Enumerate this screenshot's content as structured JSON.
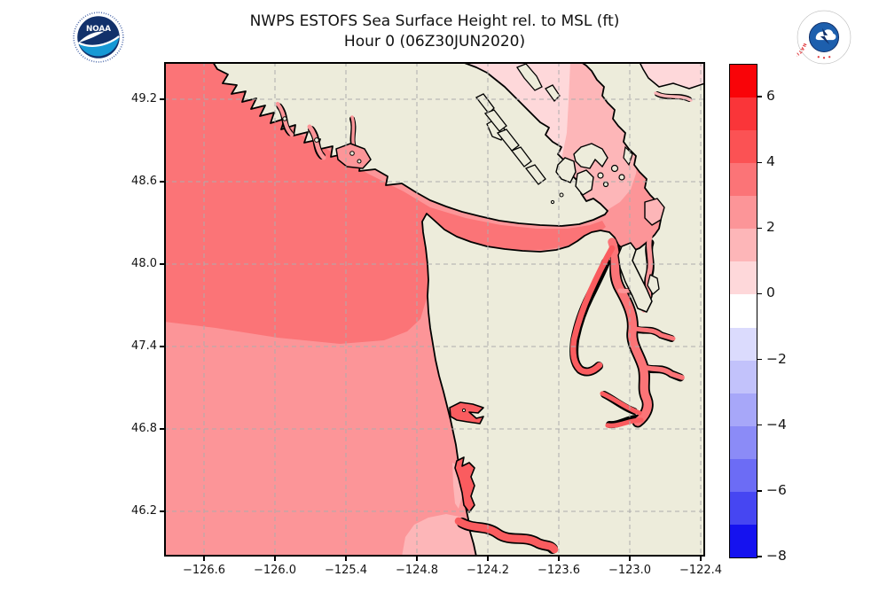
{
  "title": {
    "line1": "NWPS ESTOFS Sea Surface Height rel. to MSL (ft)",
    "line2": "Hour 0 (06Z30JUN2020)"
  },
  "logos": {
    "noaa_label": "NOAA",
    "nws_ring_text": "NATIONAL WEATHER SERVICE"
  },
  "axes": {
    "x_tick_labels": [
      "−126.6",
      "−126.0",
      "−125.4",
      "−124.8",
      "−124.2",
      "−123.6",
      "−123.0",
      "−122.4"
    ],
    "y_tick_labels": [
      "49.2",
      "48.6",
      "48.0",
      "47.4",
      "46.8",
      "46.2"
    ]
  },
  "colorbar": {
    "tick_values": [
      6,
      4,
      2,
      0,
      -2,
      -4,
      -6,
      -8
    ],
    "tick_labels": [
      "6",
      "4",
      "2",
      "0",
      "−2",
      "−4",
      "−6",
      "−8"
    ],
    "min": -8,
    "max": 7,
    "levels_top_to_bottom": [
      "#F90408",
      "#FA3539",
      "#FB5254",
      "#FB7477",
      "#FC9598",
      "#FDB6B8",
      "#FED8DA",
      "#FFFFFF",
      "#DBDBFD",
      "#C2C2FB",
      "#A7A7F9",
      "#8B8BF7",
      "#6C6CF5",
      "#4646F2",
      "#1512EF"
    ]
  },
  "palette": {
    "land": "#EDECDB",
    "coast": "#000000",
    "grid": "#ADADAD",
    "L7": "#F90408",
    "L6": "#FA3539",
    "L5": "#FA5C5F",
    "L4": "#FB7477",
    "L3": "#FC9598",
    "L2": "#FDB6B8",
    "L1": "#FED8DA",
    "L0": "#FFFFFF",
    "noaa_navy": "#12316B",
    "noaa_blue": "#1799D5",
    "nws_blue": "#1D5FAD",
    "nws_red": "#E03A3E"
  },
  "chart_data": {
    "type": "filled_contour_map",
    "title": "NWPS ESTOFS Sea Surface Height rel. to MSL (ft)",
    "subtitle": "Hour 0 (06Z30JUN2020)",
    "variable": "Sea surface height relative to MSL",
    "units": "ft",
    "x_tick_values_lon": [
      -126.6,
      -126.0,
      -125.4,
      -124.8,
      -124.2,
      -123.6,
      -123.0,
      -122.4
    ],
    "y_tick_values_lat": [
      49.2,
      48.6,
      48.0,
      47.4,
      46.8,
      46.2
    ],
    "lon_range": [
      -126.95,
      -122.36
    ],
    "lat_range": [
      45.95,
      49.47
    ],
    "colorbar_range_ft": [
      -8,
      7
    ],
    "contour_interval_ft": 1,
    "colorbar_tick_values": [
      6,
      4,
      2,
      0,
      -2,
      -4,
      -6,
      -8
    ],
    "grid": true,
    "legend_position": "right-colorbar",
    "region_values_ft": [
      {
        "region": "Offshore Pacific north of ~47.5N",
        "value": "3 to 4"
      },
      {
        "region": "Offshore Pacific south of ~47.5N",
        "value": "2 to 3"
      },
      {
        "region": "Strait of Juan de Fuca (west/central)",
        "value": "3 to 4"
      },
      {
        "region": "Eastern Juan de Fuca / San Juan basin",
        "value": "2 to 3"
      },
      {
        "region": "Strait of Georgia",
        "value": "0 to 1"
      },
      {
        "region": "Bellingham / Padilla Bay area",
        "value": "1 to 2"
      },
      {
        "region": "Puget Sound main basin",
        "value": "3 to 4"
      },
      {
        "region": "South Puget Sound inlets and Hood Canal",
        "value": "4 to 5"
      },
      {
        "region": "Grays Harbor, Willapa Bay, Columbia River mouth",
        "value": "4 to 5"
      },
      {
        "region": "Nearshore ocean at Columbia mouth",
        "value": "1 to 2"
      }
    ]
  }
}
